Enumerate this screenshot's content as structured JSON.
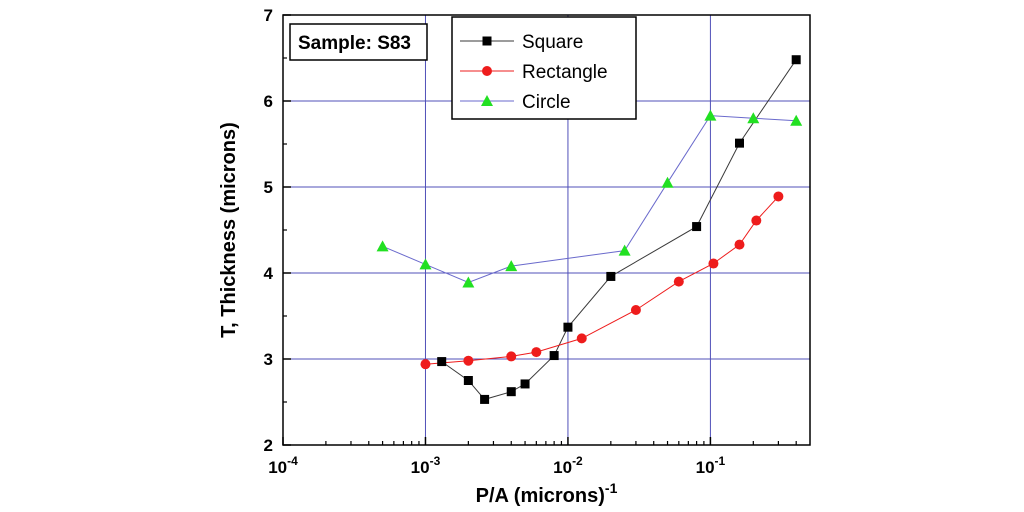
{
  "chart_data": {
    "type": "line",
    "xscale": "log",
    "xlabel": "P/A (microns)",
    "xlabel_exponent": "-1",
    "ylabel": "T, Thickness (microns)",
    "xlim": [
      0.0001,
      0.5
    ],
    "ylim": [
      2,
      7
    ],
    "x_ticks": [
      {
        "value": 0.0001,
        "base": "10",
        "exp": "-4"
      },
      {
        "value": 0.001,
        "base": "10",
        "exp": "-3"
      },
      {
        "value": 0.01,
        "base": "10",
        "exp": "-2"
      },
      {
        "value": 0.1,
        "base": "10",
        "exp": "-1"
      }
    ],
    "y_ticks": [
      {
        "value": 2,
        "label": "2"
      },
      {
        "value": 3,
        "label": "3"
      },
      {
        "value": 4,
        "label": "4"
      },
      {
        "value": 5,
        "label": "5"
      },
      {
        "value": 6,
        "label": "6"
      },
      {
        "value": 7,
        "label": "7"
      }
    ],
    "grid": true,
    "annotation": "Sample: S83",
    "legend_position": "top-center",
    "series": [
      {
        "name": "Square",
        "marker": "square",
        "color": "#000000",
        "line_color": "#3a3a3a",
        "x": [
          0.0013,
          0.002,
          0.0026,
          0.004,
          0.005,
          0.008,
          0.01,
          0.02,
          0.08,
          0.16,
          0.4
        ],
        "y": [
          2.97,
          2.75,
          2.53,
          2.62,
          2.71,
          3.04,
          3.37,
          3.96,
          4.54,
          5.51,
          6.48
        ]
      },
      {
        "name": "Rectangle",
        "marker": "circle",
        "color": "#ee1c1c",
        "line_color": "#ee1c1c",
        "x": [
          0.001,
          0.002,
          0.004,
          0.006,
          0.0125,
          0.03,
          0.06,
          0.105,
          0.16,
          0.21,
          0.3
        ],
        "y": [
          2.94,
          2.98,
          3.03,
          3.08,
          3.24,
          3.57,
          3.9,
          4.11,
          4.33,
          4.61,
          4.89
        ]
      },
      {
        "name": "Circle",
        "marker": "triangle",
        "color": "#22e022",
        "line_color": "#6a6acc",
        "x": [
          0.0005,
          0.001,
          0.002,
          0.004,
          0.025,
          0.05,
          0.1,
          0.2,
          0.4
        ],
        "y": [
          4.31,
          4.1,
          3.89,
          4.08,
          4.26,
          5.05,
          5.83,
          5.8,
          5.77
        ]
      }
    ]
  }
}
